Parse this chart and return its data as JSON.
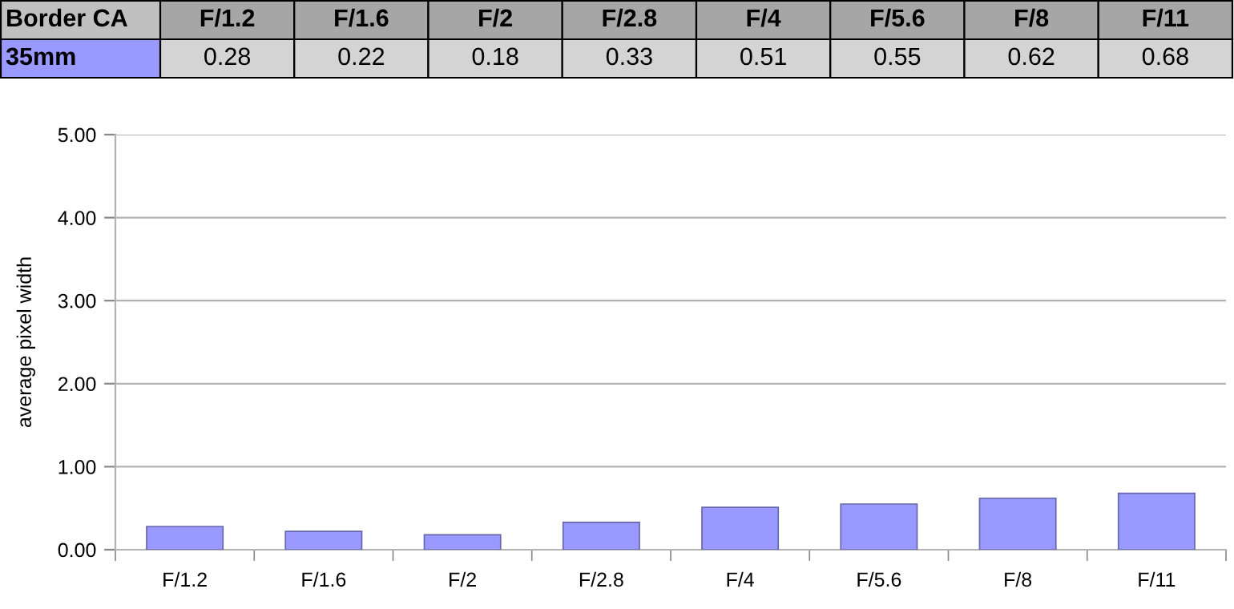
{
  "chart_data": {
    "type": "bar",
    "title": "Border CA",
    "ylabel": "average pixel width",
    "categories": [
      "F/1.2",
      "F/1.6",
      "F/2",
      "F/2.8",
      "F/4",
      "F/5.6",
      "F/8",
      "F/11"
    ],
    "series": [
      {
        "name": "35mm",
        "color": "#9999ff",
        "values": [
          0.28,
          0.22,
          0.18,
          0.33,
          0.51,
          0.55,
          0.62,
          0.68
        ]
      }
    ],
    "ylim": [
      0,
      5
    ],
    "yticks": [
      {
        "value": 0,
        "label": "0.00"
      },
      {
        "value": 1,
        "label": "1.00"
      },
      {
        "value": 2,
        "label": "2.00"
      },
      {
        "value": 3,
        "label": "3.00"
      },
      {
        "value": 4,
        "label": "4.00"
      },
      {
        "value": 5,
        "label": "5.00"
      }
    ],
    "grid": "y",
    "data_labels": true
  }
}
